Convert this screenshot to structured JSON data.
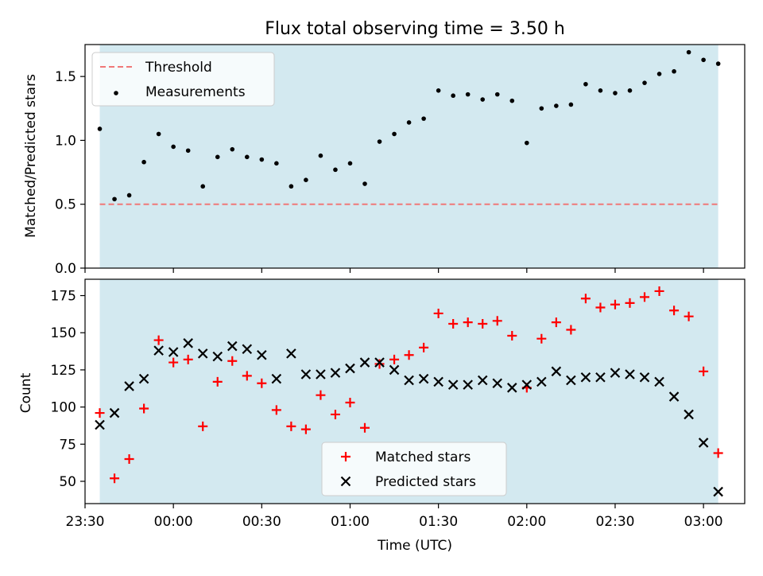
{
  "chart_data": [
    {
      "type": "scatter",
      "title": "Flux total observing time = 3.50 h",
      "xlabel": "",
      "ylabel": "Matched/Predicted stars",
      "xlim": [
        "23:30",
        "03:14"
      ],
      "ylim": [
        0,
        1.75
      ],
      "yticks": [
        0.0,
        0.5,
        1.0,
        1.5
      ],
      "shaded_interval": [
        "23:35",
        "03:05"
      ],
      "shade_color": "#d3e9f0",
      "legend_position": "upper-left",
      "grid": false,
      "series": [
        {
          "name": "Threshold",
          "kind": "dashed-line",
          "color": "#f07878",
          "x": [
            "23:35",
            "03:05"
          ],
          "values": [
            0.5,
            0.5
          ]
        },
        {
          "name": "Measurements",
          "kind": "dot",
          "color": "#000000",
          "x": [
            "23:35",
            "23:40",
            "23:45",
            "23:50",
            "23:55",
            "00:00",
            "00:05",
            "00:10",
            "00:15",
            "00:20",
            "00:25",
            "00:30",
            "00:35",
            "00:40",
            "00:45",
            "00:50",
            "00:55",
            "01:00",
            "01:05",
            "01:10",
            "01:15",
            "01:20",
            "01:25",
            "01:30",
            "01:35",
            "01:40",
            "01:45",
            "01:50",
            "01:55",
            "02:00",
            "02:05",
            "02:10",
            "02:15",
            "02:20",
            "02:25",
            "02:30",
            "02:35",
            "02:40",
            "02:45",
            "02:50",
            "02:55",
            "03:00",
            "03:05"
          ],
          "values": [
            1.09,
            0.54,
            0.57,
            0.83,
            1.05,
            0.95,
            0.92,
            0.64,
            0.87,
            0.93,
            0.87,
            0.85,
            0.82,
            0.64,
            0.69,
            0.88,
            0.77,
            0.82,
            0.66,
            0.99,
            1.05,
            1.14,
            1.17,
            1.39,
            1.35,
            1.36,
            1.32,
            1.36,
            1.31,
            0.98,
            1.25,
            1.27,
            1.28,
            1.44,
            1.39,
            1.37,
            1.39,
            1.45,
            1.52,
            1.54,
            1.69,
            1.63,
            1.6
          ]
        }
      ]
    },
    {
      "type": "scatter",
      "title": "",
      "xlabel": "Time (UTC)",
      "ylabel": "Count",
      "xlim": [
        "23:30",
        "03:14"
      ],
      "ylim": [
        35,
        186
      ],
      "yticks": [
        50,
        75,
        100,
        125,
        150,
        175
      ],
      "xticks": [
        "23:30",
        "00:00",
        "00:30",
        "01:00",
        "01:30",
        "02:00",
        "02:30",
        "03:00"
      ],
      "shaded_interval": [
        "23:35",
        "03:05"
      ],
      "shade_color": "#d3e9f0",
      "legend_position": "lower-center",
      "grid": false,
      "series": [
        {
          "name": "Matched stars",
          "marker": "plus",
          "color": "#ff0000",
          "x": [
            "23:35",
            "23:40",
            "23:45",
            "23:50",
            "23:55",
            "00:00",
            "00:05",
            "00:10",
            "00:15",
            "00:20",
            "00:25",
            "00:30",
            "00:35",
            "00:40",
            "00:45",
            "00:50",
            "00:55",
            "01:00",
            "01:05",
            "01:10",
            "01:15",
            "01:20",
            "01:25",
            "01:30",
            "01:35",
            "01:40",
            "01:45",
            "01:50",
            "01:55",
            "02:00",
            "02:05",
            "02:10",
            "02:15",
            "02:20",
            "02:25",
            "02:30",
            "02:35",
            "02:40",
            "02:45",
            "02:50",
            "02:55",
            "03:00",
            "03:05"
          ],
          "values": [
            96,
            52,
            65,
            99,
            145,
            130,
            132,
            87,
            117,
            131,
            121,
            116,
            98,
            87,
            85,
            108,
            95,
            103,
            86,
            129,
            132,
            135,
            140,
            163,
            156,
            157,
            156,
            158,
            148,
            113,
            146,
            157,
            152,
            173,
            167,
            169,
            170,
            174,
            178,
            165,
            161,
            124,
            69
          ]
        },
        {
          "name": "Predicted stars",
          "marker": "x",
          "color": "#000000",
          "x": [
            "23:35",
            "23:40",
            "23:45",
            "23:50",
            "23:55",
            "00:00",
            "00:05",
            "00:10",
            "00:15",
            "00:20",
            "00:25",
            "00:30",
            "00:35",
            "00:40",
            "00:45",
            "00:50",
            "00:55",
            "01:00",
            "01:05",
            "01:10",
            "01:15",
            "01:20",
            "01:25",
            "01:30",
            "01:35",
            "01:40",
            "01:45",
            "01:50",
            "01:55",
            "02:00",
            "02:05",
            "02:10",
            "02:15",
            "02:20",
            "02:25",
            "02:30",
            "02:35",
            "02:40",
            "02:45",
            "02:50",
            "02:55",
            "03:00",
            "03:05"
          ],
          "values": [
            88,
            96,
            114,
            119,
            138,
            137,
            143,
            136,
            134,
            141,
            139,
            135,
            119,
            136,
            122,
            122,
            123,
            126,
            130,
            130,
            125,
            118,
            119,
            117,
            115,
            115,
            118,
            116,
            113,
            115,
            117,
            124,
            118,
            120,
            120,
            123,
            122,
            120,
            117,
            107,
            95,
            76,
            43
          ]
        }
      ]
    }
  ]
}
